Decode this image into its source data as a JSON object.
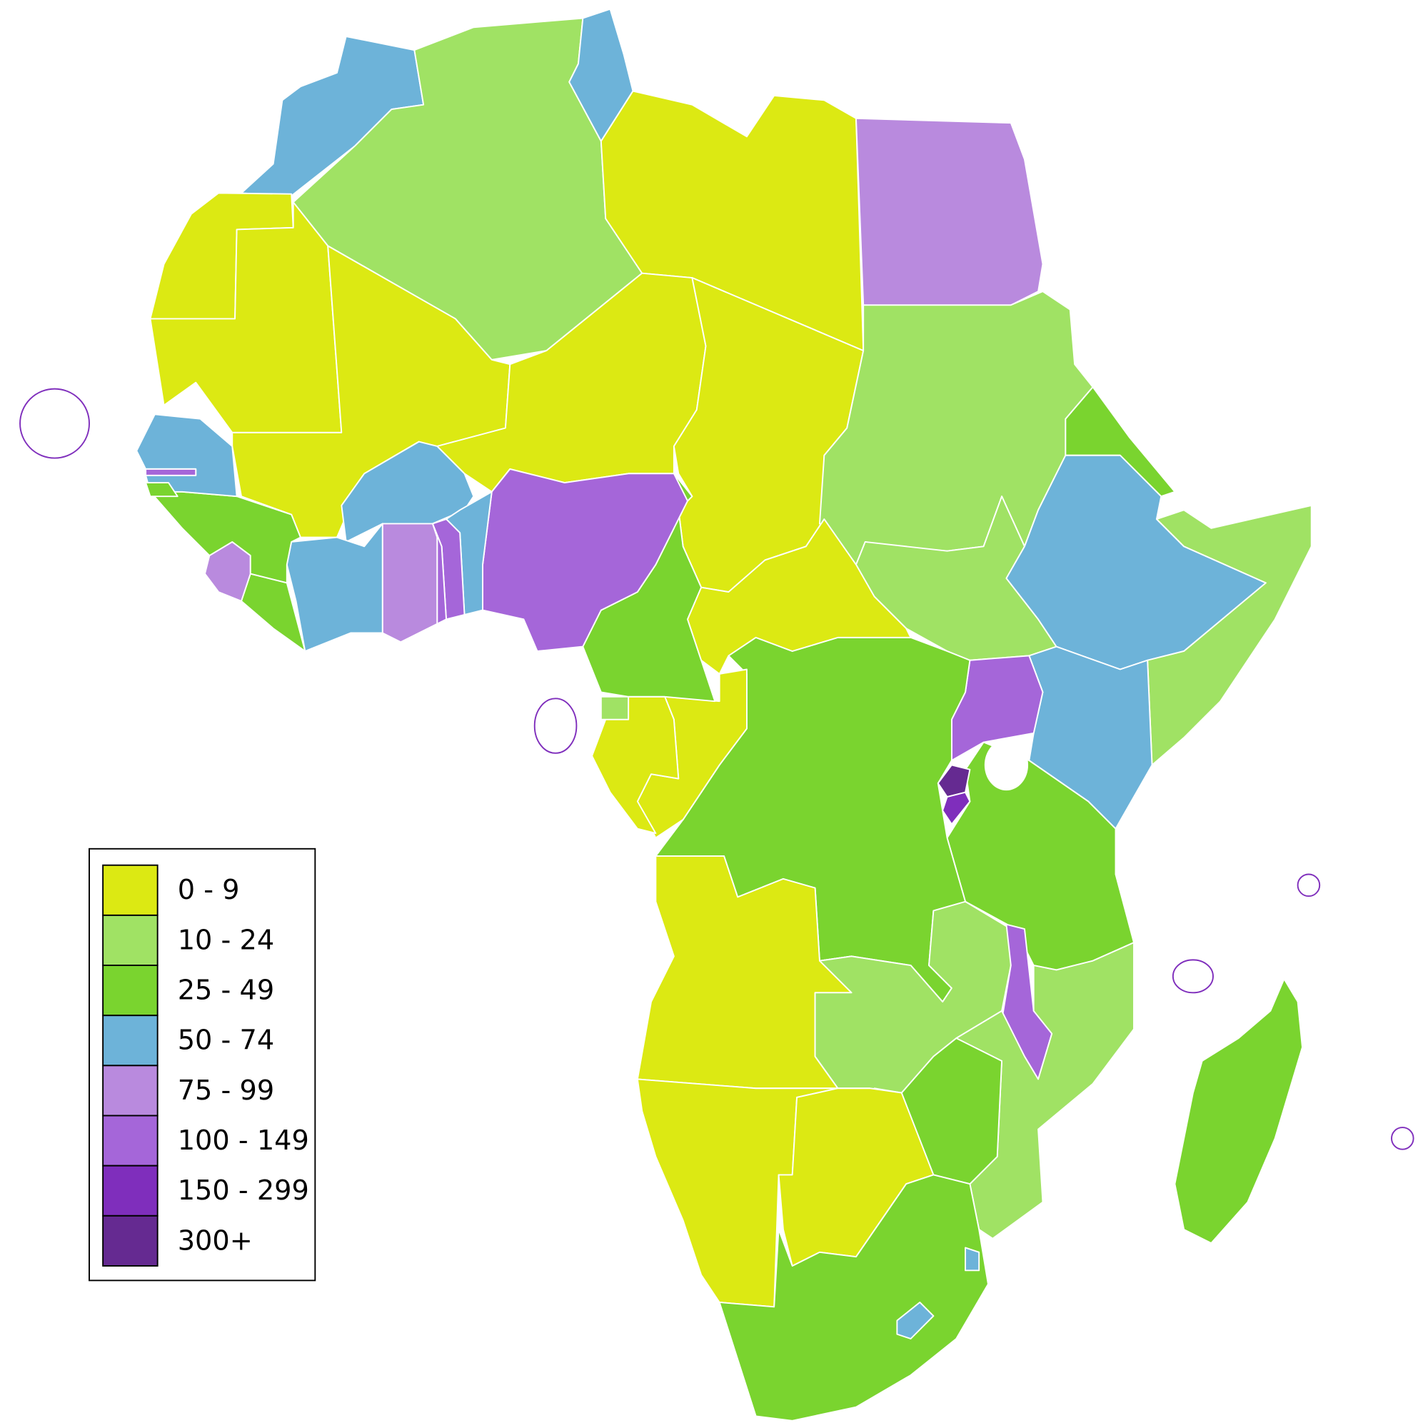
{
  "legend": {
    "items": [
      {
        "label": "0 - 9",
        "color": "#dce913"
      },
      {
        "label": "10 - 24",
        "color": "#a0e264"
      },
      {
        "label": "25 - 49",
        "color": "#7ad42f"
      },
      {
        "label": "50 - 74",
        "color": "#6db3d9"
      },
      {
        "label": "75 - 99",
        "color": "#b98ade"
      },
      {
        "label": "100 - 149",
        "color": "#a566d9"
      },
      {
        "label": "150 - 299",
        "color": "#7f2ebc"
      },
      {
        "label": "300+",
        "color": "#652a91"
      }
    ]
  }
}
